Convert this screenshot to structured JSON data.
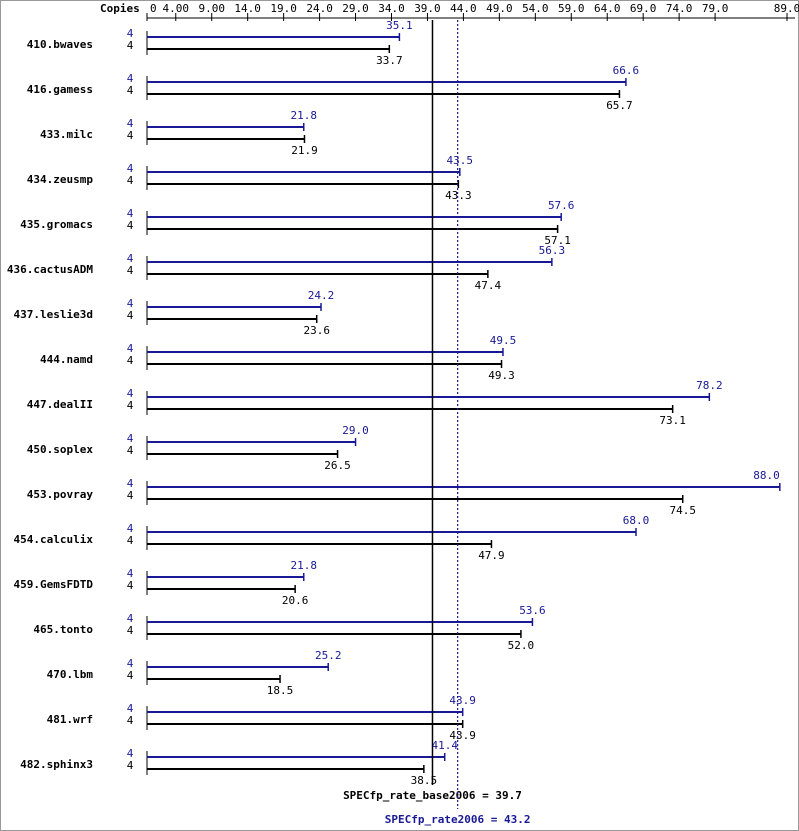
{
  "chart_data": {
    "type": "bar",
    "orientation": "horizontal",
    "copies_label": "Copies",
    "categories": [
      "410.bwaves",
      "416.gamess",
      "433.milc",
      "434.zeusmp",
      "435.gromacs",
      "436.cactusADM",
      "437.leslie3d",
      "444.namd",
      "447.dealII",
      "450.soplex",
      "453.povray",
      "454.calculix",
      "459.GemsFDTD",
      "465.tonto",
      "470.lbm",
      "481.wrf",
      "482.sphinx3"
    ],
    "series": [
      {
        "color": "#191996",
        "copies": [
          4,
          4,
          4,
          4,
          4,
          4,
          4,
          4,
          4,
          4,
          4,
          4,
          4,
          4,
          4,
          4,
          4
        ],
        "values": [
          35.1,
          66.6,
          21.8,
          43.5,
          57.6,
          56.3,
          24.2,
          49.5,
          78.2,
          29.0,
          88.0,
          68.0,
          21.8,
          53.6,
          25.2,
          43.9,
          41.4
        ],
        "value_labels": [
          "35.1",
          "66.6",
          "21.8",
          "43.5",
          "57.6",
          "56.3",
          "24.2",
          "49.5",
          "78.2",
          "29.0",
          "88.0",
          "68.0",
          "21.8",
          "53.6",
          "25.2",
          "43.9",
          "41.4"
        ]
      },
      {
        "color": "#000000",
        "copies": [
          4,
          4,
          4,
          4,
          4,
          4,
          4,
          4,
          4,
          4,
          4,
          4,
          4,
          4,
          4,
          4,
          4
        ],
        "values": [
          33.7,
          65.7,
          21.9,
          43.3,
          57.1,
          47.4,
          23.6,
          49.3,
          73.1,
          26.5,
          74.5,
          47.9,
          20.6,
          52.0,
          18.5,
          43.9,
          38.5
        ],
        "value_labels": [
          "33.7",
          "65.7",
          "21.9",
          "43.3",
          "57.1",
          "47.4",
          "23.6",
          "49.3",
          "73.1",
          "26.5",
          "74.5",
          "47.9",
          "20.6",
          "52.0",
          "18.5",
          "43.9",
          "38.5"
        ]
      }
    ],
    "xlim": [
      0,
      89
    ],
    "xticks": [
      0,
      {
        "value": 4,
        "label": "4.00"
      },
      {
        "value": 9,
        "label": "9.00"
      },
      {
        "value": 14,
        "label": "14.0"
      },
      {
        "value": 19,
        "label": "19.0"
      },
      {
        "value": 24,
        "label": "24.0"
      },
      {
        "value": 29,
        "label": "29.0"
      },
      {
        "value": 34,
        "label": "34.0"
      },
      {
        "value": 39,
        "label": "39.0"
      },
      {
        "value": 44,
        "label": "44.0"
      },
      {
        "value": 49,
        "label": "49.0"
      },
      {
        "value": 54,
        "label": "54.0"
      },
      {
        "value": 59,
        "label": "59.0"
      },
      {
        "value": 64,
        "label": "64.0"
      },
      {
        "value": 69,
        "label": "69.0"
      },
      {
        "value": 74,
        "label": "74.0"
      },
      {
        "value": 79,
        "label": "79.0"
      },
      {
        "value": 89,
        "label": "89.0"
      }
    ],
    "reference_lines": [
      {
        "label": "SPECfp_rate_base2006 = 39.7",
        "value": 39.7,
        "color": "#000000",
        "dotted": false
      },
      {
        "label": "SPECfp_rate2006 = 43.2",
        "value": 43.2,
        "color": "#191996",
        "dotted": true
      }
    ]
  }
}
